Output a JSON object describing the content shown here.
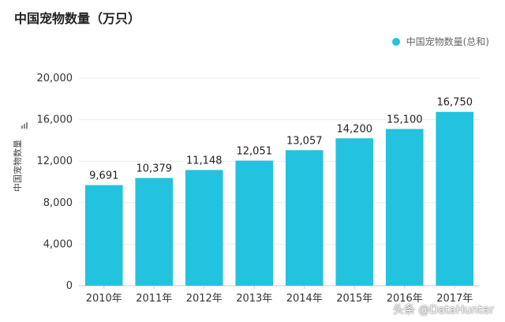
{
  "chart_data": {
    "type": "bar",
    "title": "中国宠物数量（万只）",
    "ylabel": "中国宠物数量",
    "categories": [
      "2010年",
      "2011年",
      "2012年",
      "2013年",
      "2014年",
      "2015年",
      "2016年",
      "2017年"
    ],
    "series": [
      {
        "name": "中国宠物数量(总和)",
        "values": [
          9691,
          10379,
          11148,
          12051,
          13057,
          14200,
          15100,
          16750
        ]
      }
    ],
    "data_labels": [
      "9,691",
      "10,379",
      "11,148",
      "12,051",
      "13,057",
      "14,200",
      "15,100",
      "16,750"
    ],
    "ylim": [
      0,
      20000
    ],
    "yticks": [
      0,
      4000,
      8000,
      12000,
      16000,
      20000
    ],
    "ytick_labels": [
      "0",
      "4,000",
      "8,000",
      "12,000",
      "16,000",
      "20,000"
    ],
    "grid": true,
    "legend_position": "top-right",
    "bar_color": "#23c2df"
  },
  "watermark": "头条 @DataHunter"
}
